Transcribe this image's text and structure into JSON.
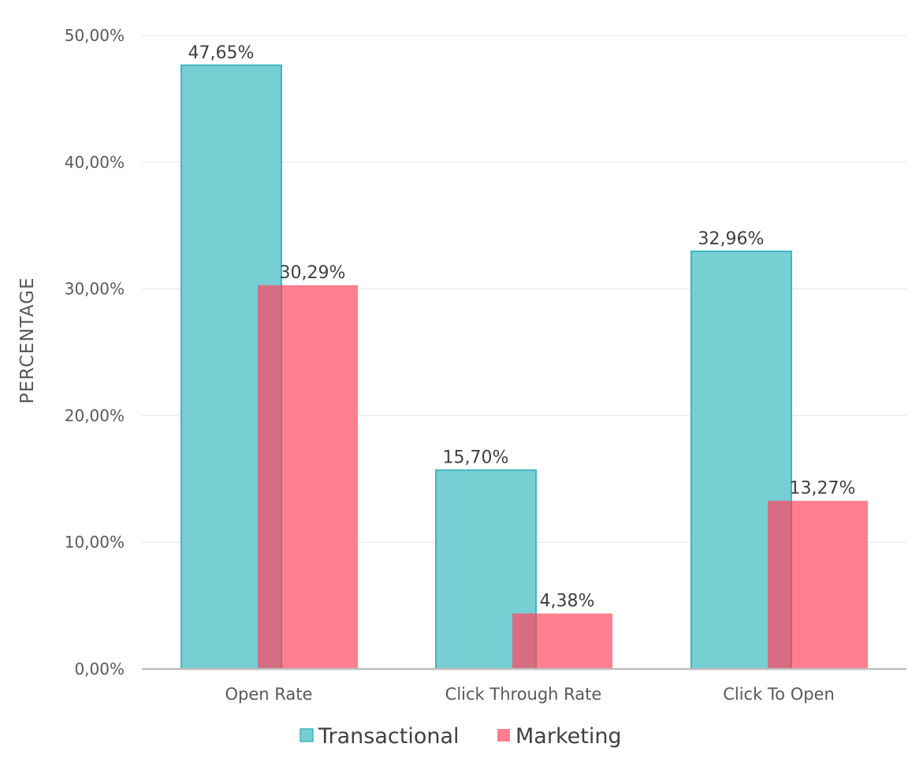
{
  "chart_data": {
    "type": "bar",
    "categories": [
      "Open Rate",
      "Click Through Rate",
      "Click To Open"
    ],
    "series": [
      {
        "name": "Transactional",
        "values": [
          47.65,
          15.7,
          32.96
        ],
        "labels": [
          "47,65%",
          "15,70%",
          "32,96%"
        ],
        "color": "#77CED3",
        "stroke": "#3FB7C0"
      },
      {
        "name": "Marketing",
        "values": [
          30.29,
          4.38,
          13.27
        ],
        "labels": [
          "30,29%",
          "4,38%",
          "13,27%"
        ],
        "color": "#FF7F90",
        "stroke": "#FF7F90"
      }
    ],
    "ylabel": "PERCENTAGE",
    "xlabel": "",
    "ylim": [
      0,
      50
    ],
    "yticks": [
      0,
      10,
      20,
      30,
      40,
      50
    ],
    "ytick_labels": [
      "0,00%",
      "10,00%",
      "20,00%",
      "30,00%",
      "40,00%",
      "50,00%"
    ],
    "overlap_color": "#D66D82",
    "grid": true,
    "legend_position": "bottom"
  }
}
